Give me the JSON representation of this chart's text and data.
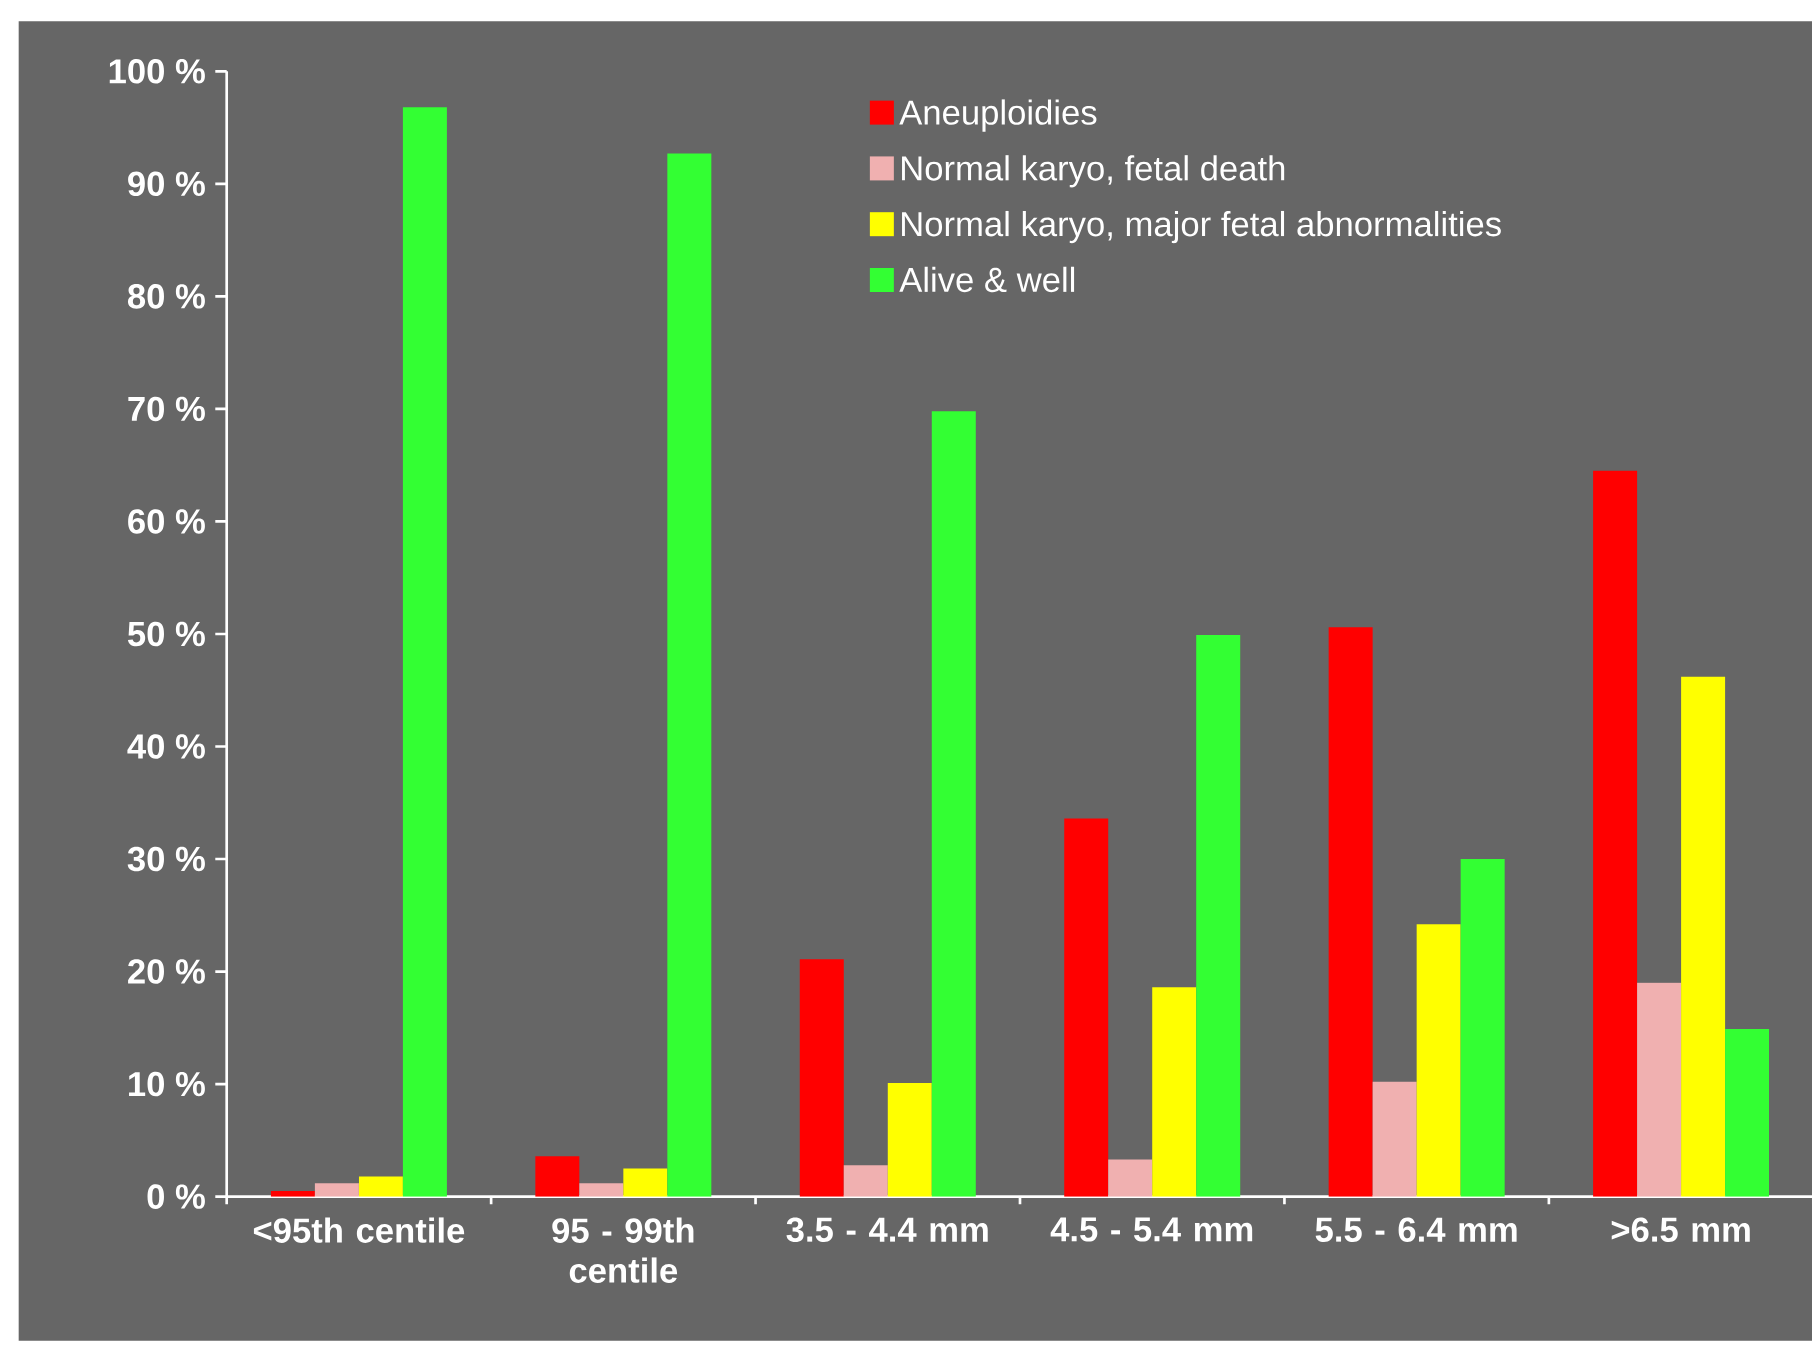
{
  "chart_data": {
    "type": "bar",
    "categories": [
      "<95th centile",
      "95 - 99th centile",
      "3.5 - 4.4 mm",
      "4.5 - 5.4 mm",
      "5.5 - 6.4 mm",
      ">6.5 mm"
    ],
    "series": [
      {
        "name": "Aneuploidies",
        "color": "#ff0000",
        "values": [
          0.5,
          3.6,
          21.1,
          33.6,
          50.6,
          64.5
        ]
      },
      {
        "name": "Normal karyo, fetal death",
        "color": "#f0b0b0",
        "values": [
          1.2,
          1.2,
          2.8,
          3.3,
          10.2,
          19.0
        ]
      },
      {
        "name": "Normal karyo, major fetal abnormalities",
        "color": "#ffff00",
        "values": [
          1.8,
          2.5,
          10.1,
          18.6,
          24.2,
          46.2
        ]
      },
      {
        "name": "Alive & well",
        "color": "#33ff33",
        "values": [
          96.8,
          92.7,
          69.8,
          49.9,
          30.0,
          14.9
        ]
      }
    ],
    "ylim": [
      0,
      100
    ],
    "yticks": [
      {
        "value": 0,
        "label": "0 %"
      },
      {
        "value": 10,
        "label": "10 %"
      },
      {
        "value": 20,
        "label": "20 %"
      },
      {
        "value": 30,
        "label": "30 %"
      },
      {
        "value": 40,
        "label": "40 %"
      },
      {
        "value": 50,
        "label": "50 %"
      },
      {
        "value": 60,
        "label": "60 %"
      },
      {
        "value": 70,
        "label": "70 %"
      },
      {
        "value": 80,
        "label": "80 %"
      },
      {
        "value": 90,
        "label": "90 %"
      },
      {
        "value": 100,
        "label": "100 %"
      }
    ],
    "legend": "top",
    "grid": false
  }
}
